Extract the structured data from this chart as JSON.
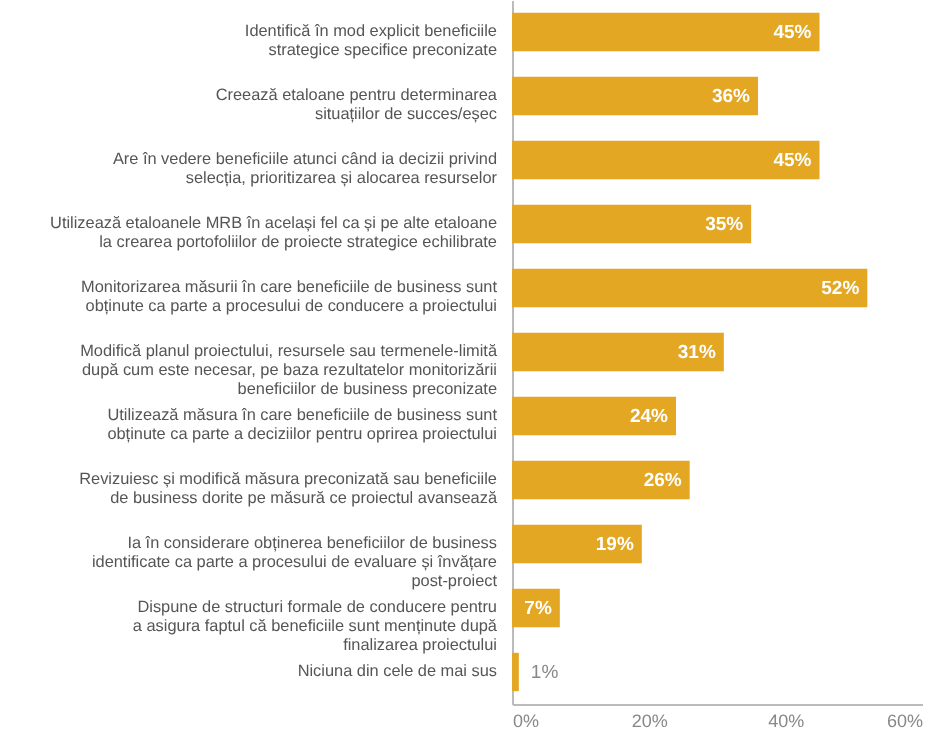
{
  "chart_data": {
    "type": "bar",
    "orientation": "horizontal",
    "categories": [
      "Identifică în mod explicit beneficiile\nstrategice specifice preconizate",
      "Creează etaloane pentru determinarea\nsituațiilor de succes/eșec",
      "Are în vedere beneficiile atunci când ia decizii privind\nselecția, prioritizarea și alocarea resurselor",
      "Utilizează etaloanele MRB în același fel ca și pe alte etaloane\nla crearea portofoliilor de proiecte strategice echilibrate",
      "Monitorizarea măsurii în care beneficiile de business sunt\nobținute ca parte a procesului de conducere a proiectului",
      "Modifică planul proiectului, resursele sau termenele-limită\ndupă cum este necesar, pe baza rezultatelor monitorizării\nbeneficiilor de business preconizate",
      "Utilizează măsura în care beneficiile de business sunt\nobținute ca parte a deciziilor pentru oprirea proiectului",
      "Revizuiesc și modifică măsura preconizată sau beneficiile\nde business dorite pe măsură ce proiectul avansează",
      "Ia în considerare obținerea beneficiilor de business\nidentificate ca parte a procesului de evaluare și învățare\npost-proiect",
      "Dispune de structuri formale de conducere pentru\na asigura faptul că beneficiile sunt menținute după\nfinalizarea proiectului",
      "Niciuna din cele de mai sus"
    ],
    "values": [
      45,
      36,
      45,
      35,
      52,
      31,
      24,
      26,
      19,
      7,
      1
    ],
    "value_labels": [
      "45%",
      "36%",
      "45%",
      "35%",
      "52%",
      "31%",
      "24%",
      "26%",
      "19%",
      "7%",
      "1%"
    ],
    "color": "#e3a724",
    "xlim": [
      0,
      60
    ],
    "xticks": [
      {
        "value": 0,
        "label": "0%"
      },
      {
        "value": 20,
        "label": "20%"
      },
      {
        "value": 40,
        "label": "40%"
      },
      {
        "value": 60,
        "label": "60%"
      }
    ],
    "grid": false
  }
}
